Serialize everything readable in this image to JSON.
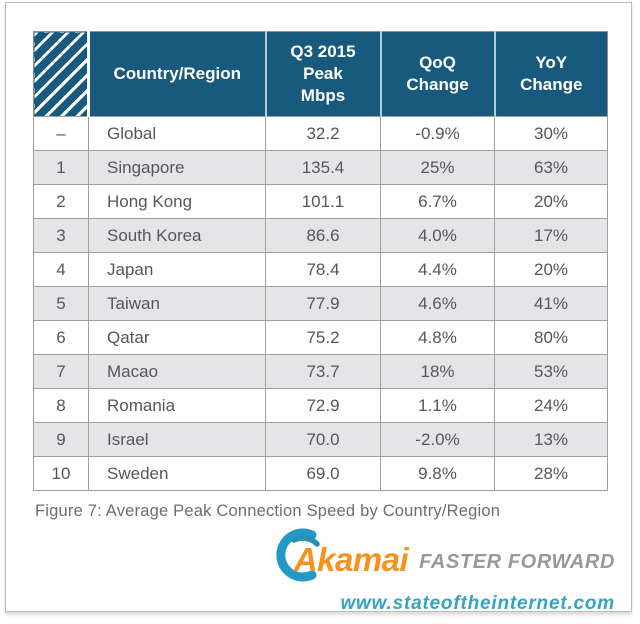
{
  "table": {
    "header": {
      "country": "Country/Region",
      "mbps": "Q3 2015\nPeak\nMbps",
      "qoq": "QoQ\nChange",
      "yoy": "YoY\nChange"
    },
    "rows": [
      {
        "rank": "–",
        "country": "Global",
        "mbps": "32.2",
        "qoq": "-0.9%",
        "yoy": "30%"
      },
      {
        "rank": "1",
        "country": "Singapore",
        "mbps": "135.4",
        "qoq": "25%",
        "yoy": "63%"
      },
      {
        "rank": "2",
        "country": "Hong Kong",
        "mbps": "101.1",
        "qoq": "6.7%",
        "yoy": "20%"
      },
      {
        "rank": "3",
        "country": "South Korea",
        "mbps": "86.6",
        "qoq": "4.0%",
        "yoy": "17%"
      },
      {
        "rank": "4",
        "country": "Japan",
        "mbps": "78.4",
        "qoq": "4.4%",
        "yoy": "20%"
      },
      {
        "rank": "5",
        "country": "Taiwan",
        "mbps": "77.9",
        "qoq": "4.6%",
        "yoy": "41%"
      },
      {
        "rank": "6",
        "country": "Qatar",
        "mbps": "75.2",
        "qoq": "4.8%",
        "yoy": "80%"
      },
      {
        "rank": "7",
        "country": "Macao",
        "mbps": "73.7",
        "qoq": "18%",
        "yoy": "53%"
      },
      {
        "rank": "8",
        "country": "Romania",
        "mbps": "72.9",
        "qoq": "1.1%",
        "yoy": "24%"
      },
      {
        "rank": "9",
        "country": "Israel",
        "mbps": "70.0",
        "qoq": "-2.0%",
        "yoy": "13%"
      },
      {
        "rank": "10",
        "country": "Sweden",
        "mbps": "69.0",
        "qoq": "9.8%",
        "yoy": "28%"
      }
    ]
  },
  "caption": "Figure 7: Average Peak Connection Speed by Country/Region",
  "logo": {
    "brand": "Akamai",
    "tagline": "FASTER FORWARD",
    "url": "www.stateoftheinternet.com"
  },
  "colors": {
    "header_bg": "#175a7d",
    "header_divider": "#aecedd",
    "row_alt_bg": "#e5e5e7",
    "grid_line": "#9e9e9e",
    "body_text": "#55565a",
    "caption_text": "#6d6d6d",
    "brand_orange": "#f6921e",
    "tagline_gray": "#97989b",
    "url_teal": "#35a3c4",
    "logo_blue": "#2498c6"
  }
}
